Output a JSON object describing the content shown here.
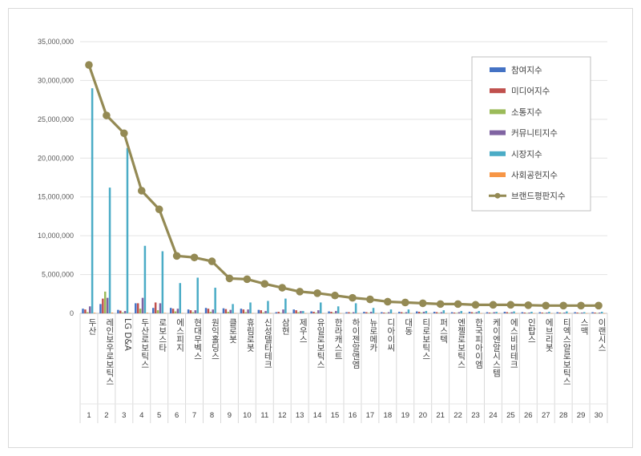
{
  "chart_data": {
    "type": "bar",
    "ylim": [
      0,
      35000000
    ],
    "y_ticks": [
      "0",
      "5,000,000",
      "10,000,000",
      "15,000,000",
      "20,000,000",
      "25,000,000",
      "30,000,000",
      "35,000,000"
    ],
    "legend_position": "top-right",
    "grid": true,
    "ranks": [
      "1",
      "2",
      "3",
      "4",
      "5",
      "6",
      "7",
      "8",
      "9",
      "10",
      "11",
      "12",
      "13",
      "14",
      "15",
      "16",
      "17",
      "18",
      "19",
      "20",
      "21",
      "22",
      "23",
      "24",
      "25",
      "26",
      "27",
      "28",
      "29",
      "30"
    ],
    "categories": [
      "두산",
      "레인보우로보틱스",
      "LG D&A",
      "두산로보틱스",
      "로보스타",
      "에스피지",
      "현대무벡스",
      "원익홀딩스",
      "클로봇",
      "휴림로봇",
      "신성델타테크",
      "삼현",
      "제우스",
      "유일로보틱스",
      "한라캐스트",
      "하이젠알앤엠",
      "뉴로메카",
      "디아이씨",
      "대동",
      "티로보틱스",
      "퍼스텍",
      "엔젤로보틱스",
      "한국피아이엠",
      "케이엔알시스템",
      "에스비비테크",
      "인탑스",
      "에브리봇",
      "티엑스알로보틱스",
      "스맥",
      "이랜시스"
    ],
    "series": [
      {
        "name": "참여지수",
        "color": "#4472c4",
        "values": [
          600000,
          1200000,
          450000,
          1300000,
          700000,
          700000,
          500000,
          700000,
          650000,
          600000,
          450000,
          150000,
          500000,
          250000,
          250000,
          150000,
          200000,
          150000,
          200000,
          250000,
          200000,
          150000,
          200000,
          150000,
          200000,
          150000,
          150000,
          150000,
          150000,
          150000
        ]
      },
      {
        "name": "미디어지수",
        "color": "#c0504d",
        "values": [
          500000,
          1900000,
          350000,
          1300000,
          1400000,
          600000,
          400000,
          600000,
          550000,
          500000,
          400000,
          200000,
          400000,
          200000,
          200000,
          150000,
          150000,
          100000,
          150000,
          200000,
          150000,
          100000,
          150000,
          100000,
          150000,
          100000,
          100000,
          100000,
          100000,
          100000
        ]
      },
      {
        "name": "소통지수",
        "color": "#9bbb59",
        "values": [
          150000,
          2800000,
          120000,
          600000,
          400000,
          250000,
          150000,
          200000,
          200000,
          150000,
          120000,
          60000,
          150000,
          80000,
          80000,
          50000,
          60000,
          50000,
          60000,
          80000,
          60000,
          50000,
          60000,
          50000,
          60000,
          40000,
          40000,
          40000,
          40000,
          40000
        ]
      },
      {
        "name": "커뮤니티지수",
        "color": "#8064a2",
        "values": [
          900000,
          2000000,
          300000,
          2000000,
          1300000,
          600000,
          400000,
          500000,
          450000,
          500000,
          300000,
          500000,
          300000,
          400000,
          300000,
          150000,
          200000,
          150000,
          150000,
          200000,
          150000,
          150000,
          150000,
          150000,
          150000,
          100000,
          100000,
          100000,
          100000,
          100000
        ]
      },
      {
        "name": "시장지수",
        "color": "#4bacc6",
        "values": [
          29000000,
          16200000,
          21300000,
          8700000,
          8000000,
          3900000,
          4600000,
          3300000,
          1200000,
          1400000,
          1600000,
          1900000,
          300000,
          1400000,
          900000,
          1300000,
          700000,
          500000,
          500000,
          300000,
          400000,
          300000,
          300000,
          200000,
          250000,
          200000,
          200000,
          250000,
          150000,
          200000
        ]
      },
      {
        "name": "사회공헌지수",
        "color": "#f79646",
        "values": [
          80000,
          100000,
          60000,
          80000,
          60000,
          40000,
          30000,
          40000,
          30000,
          30000,
          30000,
          20000,
          20000,
          20000,
          20000,
          20000,
          20000,
          20000,
          20000,
          20000,
          20000,
          20000,
          20000,
          20000,
          20000,
          20000,
          20000,
          20000,
          20000,
          20000
        ]
      }
    ],
    "line": {
      "name": "브랜드평판지수",
      "color": "#948a54",
      "values": [
        32000000,
        25500000,
        23200000,
        15800000,
        13400000,
        7400000,
        7200000,
        6700000,
        4500000,
        4400000,
        3800000,
        3300000,
        2800000,
        2600000,
        2300000,
        2000000,
        1800000,
        1500000,
        1400000,
        1300000,
        1200000,
        1200000,
        1100000,
        1100000,
        1100000,
        1050000,
        1000000,
        1000000,
        1000000,
        1000000
      ]
    }
  }
}
